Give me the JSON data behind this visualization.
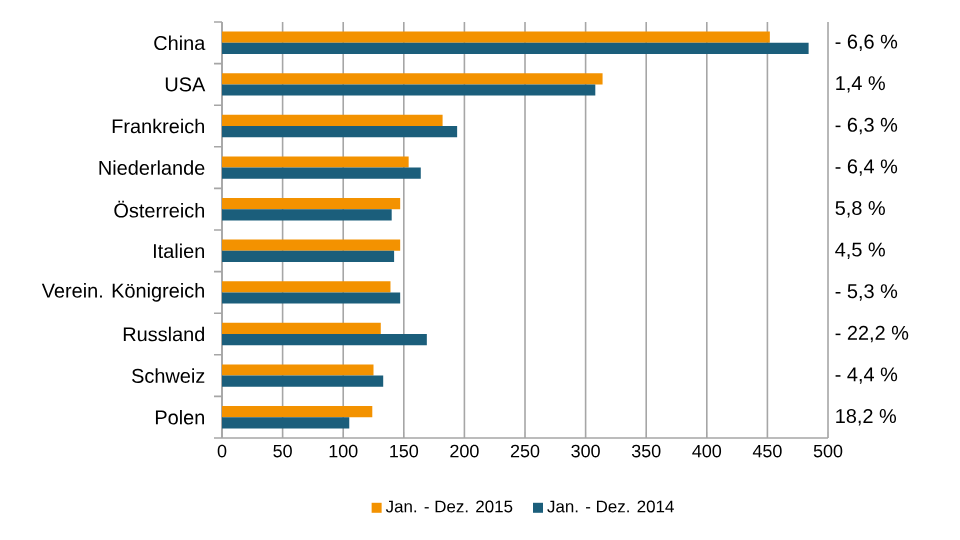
{
  "chart_data": {
    "type": "bar",
    "orientation": "horizontal",
    "categories": [
      "China",
      "USA",
      "Frankreich",
      "Niederlande",
      "Österreich",
      "Italien",
      "Verein. Königreich",
      "Russland",
      "Schweiz",
      "Polen"
    ],
    "series": [
      {
        "name": "Jan. - Dez. 2015",
        "color": "#f39200",
        "values": [
          452,
          314,
          182,
          154,
          147,
          147,
          139,
          131,
          125,
          124
        ]
      },
      {
        "name": "Jan. - Dez. 2014",
        "color": "#1b5e7b",
        "values": [
          484,
          308,
          194,
          164,
          140,
          142,
          147,
          169,
          133,
          105
        ]
      }
    ],
    "xlim": [
      0,
      500
    ],
    "xticks": [
      0,
      50,
      100,
      150,
      200,
      250,
      300,
      350,
      400,
      450,
      500
    ],
    "grid": "x",
    "legend": "bottom",
    "annotations": [
      "- 6,6 %",
      "1,4 %",
      "- 6,3 %",
      "- 6,4 %",
      "5,8 %",
      "4,5 %",
      "- 5,3 %",
      "- 22,2 %",
      "- 4,4 %",
      "18,2 %"
    ]
  }
}
